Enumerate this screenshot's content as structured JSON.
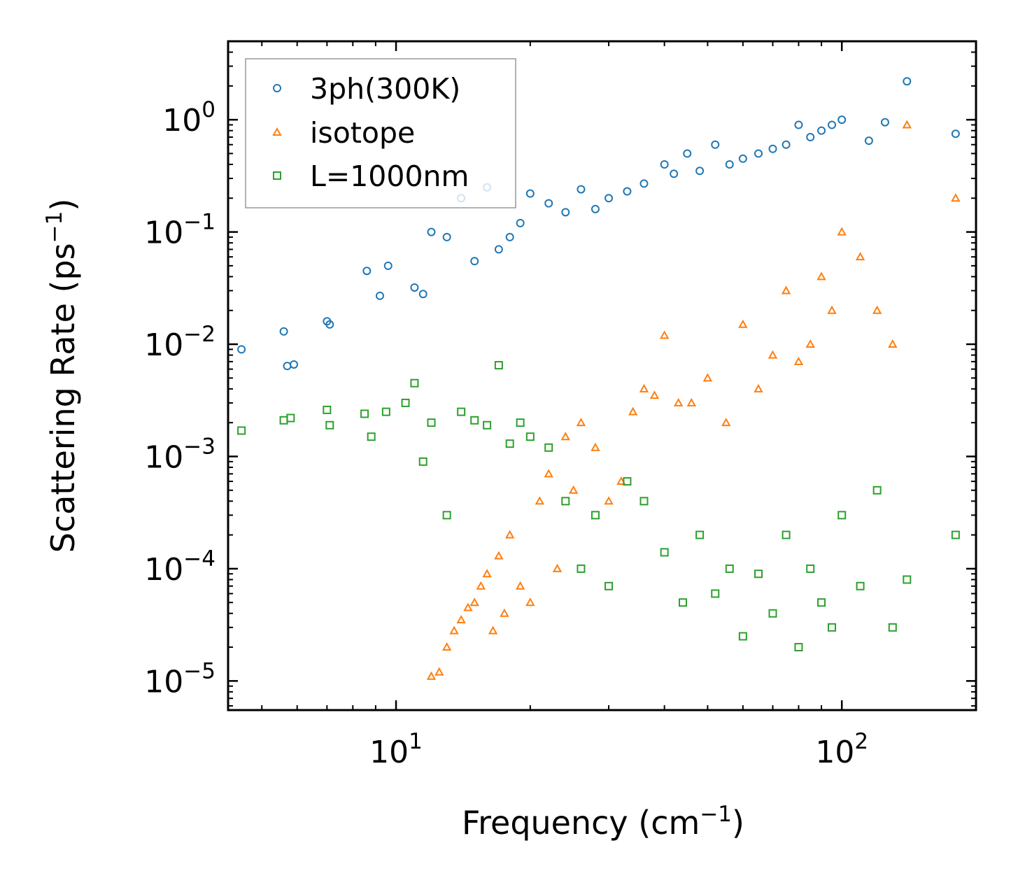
{
  "chart_data": {
    "type": "scatter",
    "xscale": "log",
    "yscale": "log",
    "xlabel": {
      "main": "Frequency (cm",
      "sup": "−1",
      "close": ")"
    },
    "ylabel": {
      "main": "Scattering Rate (ps",
      "sup": "−1",
      "close": ")"
    },
    "xlim": [
      4.2,
      200
    ],
    "ylim": [
      5.5e-06,
      5
    ],
    "x_ticks": [
      {
        "value": 10,
        "base": "10",
        "exp": "1"
      },
      {
        "value": 100,
        "base": "10",
        "exp": "2"
      }
    ],
    "y_ticks": [
      {
        "value": 1,
        "base": "10",
        "exp": "0"
      },
      {
        "value": 0.1,
        "base": "10",
        "exp": "−1"
      },
      {
        "value": 0.01,
        "base": "10",
        "exp": "−2"
      },
      {
        "value": 0.001,
        "base": "10",
        "exp": "−3"
      },
      {
        "value": 0.0001,
        "base": "10",
        "exp": "−4"
      },
      {
        "value": 1e-05,
        "base": "10",
        "exp": "−5"
      }
    ],
    "legend_position": "top-left",
    "series": [
      {
        "name": "3ph(300K)",
        "marker": "circle",
        "color": "#1f77b4",
        "x": [
          4.5,
          5.6,
          5.7,
          5.9,
          7.0,
          7.1,
          8.6,
          9.2,
          9.6,
          11.0,
          11.5,
          12.0,
          13.0,
          14.0,
          15.0,
          16.0,
          17.0,
          18.0,
          19.0,
          20.0,
          22.0,
          24.0,
          26.0,
          28.0,
          30.0,
          33.0,
          36.0,
          40.0,
          42.0,
          45.0,
          48.0,
          52.0,
          56.0,
          60.0,
          65.0,
          70.0,
          75.0,
          80.0,
          85.0,
          90.0,
          95.0,
          100.0,
          115.0,
          125.0,
          140.0,
          180.0
        ],
        "y": [
          0.009,
          0.013,
          0.0064,
          0.0066,
          0.016,
          0.015,
          0.045,
          0.027,
          0.05,
          0.032,
          0.028,
          0.1,
          0.09,
          0.2,
          0.055,
          0.25,
          0.07,
          0.09,
          0.12,
          0.22,
          0.18,
          0.15,
          0.24,
          0.16,
          0.2,
          0.23,
          0.27,
          0.4,
          0.33,
          0.5,
          0.35,
          0.6,
          0.4,
          0.45,
          0.5,
          0.55,
          0.6,
          0.9,
          0.7,
          0.8,
          0.9,
          1.0,
          0.65,
          0.95,
          2.2,
          0.75
        ]
      },
      {
        "name": "isotope",
        "marker": "triangle",
        "color": "#ff7f0e",
        "x": [
          12.0,
          12.5,
          13.0,
          13.5,
          14.0,
          14.5,
          15.0,
          15.5,
          16.0,
          16.5,
          17.0,
          17.5,
          18.0,
          19.0,
          20.0,
          21.0,
          22.0,
          23.0,
          24.0,
          25.0,
          26.0,
          28.0,
          30.0,
          32.0,
          34.0,
          36.0,
          38.0,
          40.0,
          43.0,
          46.0,
          50.0,
          55.0,
          60.0,
          65.0,
          70.0,
          75.0,
          80.0,
          85.0,
          90.0,
          95.0,
          100.0,
          110.0,
          120.0,
          130.0,
          140.0,
          180.0
        ],
        "y": [
          1.1e-05,
          1.2e-05,
          2e-05,
          2.8e-05,
          3.5e-05,
          4.5e-05,
          5e-05,
          7e-05,
          9e-05,
          2.8e-05,
          0.00013,
          4e-05,
          0.0002,
          7e-05,
          5e-05,
          0.0004,
          0.0007,
          0.0001,
          0.0015,
          0.0005,
          0.002,
          0.0012,
          0.0004,
          0.0006,
          0.0025,
          0.004,
          0.0035,
          0.012,
          0.003,
          0.003,
          0.005,
          0.002,
          0.015,
          0.004,
          0.008,
          0.03,
          0.007,
          0.01,
          0.04,
          0.02,
          0.1,
          0.06,
          0.02,
          0.01,
          0.9,
          0.2
        ]
      },
      {
        "name": "L=1000nm",
        "marker": "square",
        "color": "#2ca02c",
        "x": [
          4.5,
          5.6,
          5.8,
          7.0,
          7.1,
          8.5,
          8.8,
          9.5,
          10.5,
          11.0,
          11.5,
          12.0,
          13.0,
          14.0,
          15.0,
          16.0,
          17.0,
          18.0,
          19.0,
          20.0,
          22.0,
          24.0,
          26.0,
          28.0,
          30.0,
          33.0,
          36.0,
          40.0,
          44.0,
          48.0,
          52.0,
          56.0,
          60.0,
          65.0,
          70.0,
          75.0,
          80.0,
          85.0,
          90.0,
          95.0,
          100.0,
          110.0,
          120.0,
          130.0,
          140.0,
          180.0
        ],
        "y": [
          0.0017,
          0.0021,
          0.0022,
          0.0026,
          0.0019,
          0.0024,
          0.0015,
          0.0025,
          0.003,
          0.0045,
          0.0009,
          0.002,
          0.0003,
          0.0025,
          0.0021,
          0.0019,
          0.0065,
          0.0013,
          0.002,
          0.0015,
          0.0012,
          0.0004,
          0.0001,
          0.0003,
          7e-05,
          0.0006,
          0.0004,
          0.00014,
          5e-05,
          0.0002,
          6e-05,
          0.0001,
          2.5e-05,
          9e-05,
          4e-05,
          0.0002,
          2e-05,
          0.0001,
          5e-05,
          3e-05,
          0.0003,
          7e-05,
          0.0005,
          3e-05,
          8e-05,
          0.0002
        ]
      }
    ]
  }
}
